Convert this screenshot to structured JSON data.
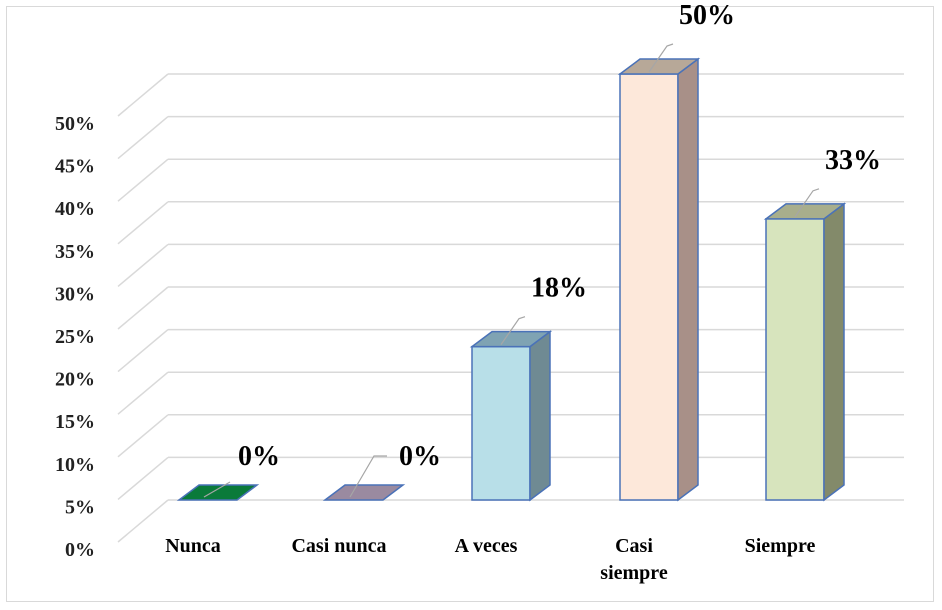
{
  "chart_data": {
    "type": "bar",
    "categories": [
      "Nunca",
      "Casi nunca",
      "A veces",
      "Casi siempre",
      "Siempre"
    ],
    "category_lines": [
      [
        "Nunca"
      ],
      [
        "Casi nunca"
      ],
      [
        "A veces"
      ],
      [
        "Casi",
        "siempre"
      ],
      [
        "Siempre"
      ]
    ],
    "values": [
      0,
      0,
      18,
      50,
      33
    ],
    "value_labels": [
      "0%",
      "0%",
      "18%",
      "50%",
      "33%"
    ],
    "ylim": [
      0,
      50
    ],
    "yticks": [
      0,
      5,
      10,
      15,
      20,
      25,
      30,
      35,
      40,
      45,
      50
    ],
    "ytick_labels": [
      "0%",
      "5%",
      "10%",
      "15%",
      "20%",
      "25%",
      "30%",
      "35%",
      "40%",
      "45%",
      "50%"
    ],
    "grid": true,
    "three_d": true,
    "legend": "none",
    "colors": {
      "fronts": [
        "#0a7a3a",
        "#9a8aa0",
        "#b8dfe8",
        "#fde8da",
        "#d7e4bd"
      ],
      "sides": [
        "#0a5a2a",
        "#6f6a80",
        "#6f8a93",
        "#a89088",
        "#838a6a"
      ],
      "tops": [
        "#1a8a4a",
        "#8a84a8",
        "#7fa3b3",
        "#b7a898",
        "#a8ae8c"
      ],
      "outline": "#4a72b8",
      "grid": "#d9d9d9"
    }
  }
}
